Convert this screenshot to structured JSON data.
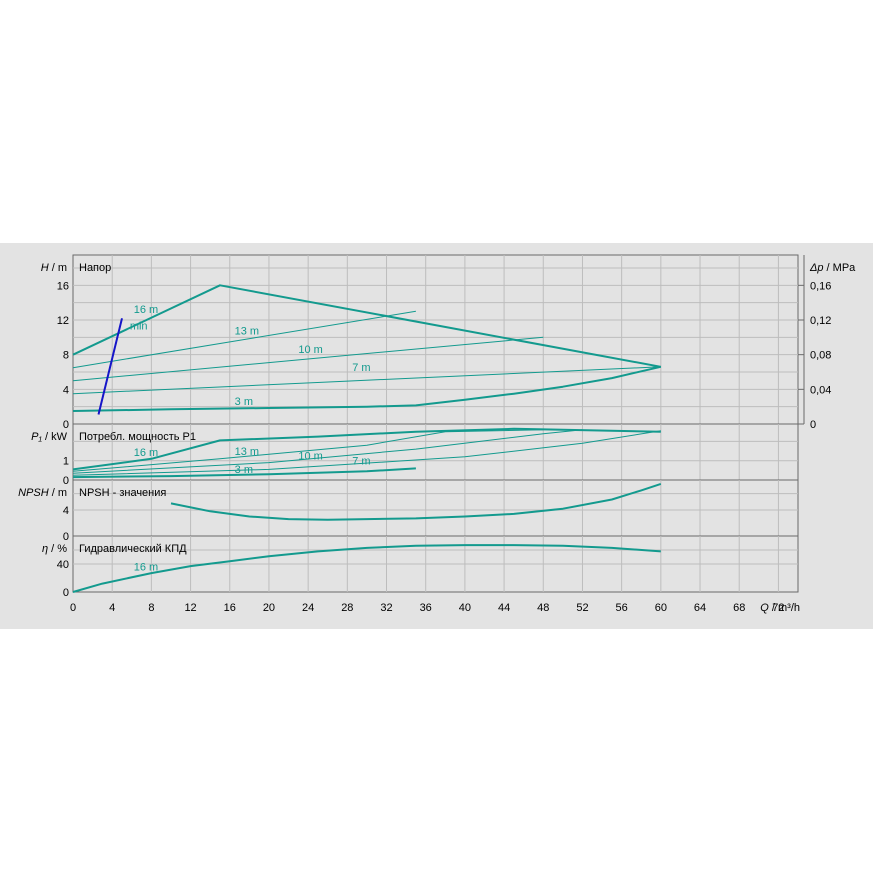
{
  "chart_data": {
    "type": "line",
    "colors": {
      "curve": "#139a8e",
      "limit": "#1515c8",
      "background": "#e3e3e3",
      "grid": "#bdbdbd"
    },
    "x_axis": {
      "label_var": "Q",
      "label_unit": "m³/h",
      "ticks": [
        "0",
        "4",
        "8",
        "12",
        "16",
        "20",
        "24",
        "28",
        "32",
        "36",
        "40",
        "44",
        "48",
        "52",
        "56",
        "60",
        "64",
        "68",
        "72"
      ],
      "range": [
        0,
        74
      ]
    },
    "panels": [
      {
        "id": "head",
        "title": "Напор",
        "label_var": "H",
        "label_unit": "m",
        "y_ticks": [
          "0",
          "4",
          "8",
          "12",
          "16"
        ],
        "y_range": [
          0,
          19.5
        ],
        "right_axis": {
          "label_var": "Δp",
          "label_unit": "MPa",
          "ticks": [
            "0",
            "0,04",
            "0,08",
            "0,12",
            "0,16"
          ]
        },
        "series": [
          {
            "name": "16 m",
            "width": 2,
            "points": [
              [
                0,
                8
              ],
              [
                15,
                16
              ],
              [
                60,
                6.6
              ]
            ]
          },
          {
            "name": "13 m",
            "width": 1,
            "points": [
              [
                0,
                6.5
              ],
              [
                35,
                13
              ]
            ]
          },
          {
            "name": "10 m",
            "width": 1,
            "points": [
              [
                0,
                5
              ],
              [
                48,
                10
              ]
            ]
          },
          {
            "name": "7 m",
            "width": 1,
            "points": [
              [
                0,
                3.5
              ],
              [
                60,
                6.6
              ]
            ]
          },
          {
            "name": "3 m",
            "width": 2,
            "points": [
              [
                0,
                1.5
              ],
              [
                10,
                1.7
              ],
              [
                20,
                1.85
              ],
              [
                30,
                2
              ],
              [
                35,
                2.15
              ],
              [
                40,
                2.8
              ],
              [
                45,
                3.5
              ],
              [
                50,
                4.3
              ],
              [
                55,
                5.3
              ],
              [
                60,
                6.6
              ]
            ]
          }
        ],
        "limit_line": {
          "name": "min",
          "points": [
            [
              2.6,
              1.1
            ],
            [
              5,
              12.2
            ]
          ]
        },
        "labels": [
          {
            "text": "16 m",
            "x": 6.2,
            "y": 12.8
          },
          {
            "text": "min",
            "x": 5.8,
            "y": 10.9
          },
          {
            "text": "13 m",
            "x": 16.5,
            "y": 10.3
          },
          {
            "text": "10 m",
            "x": 23,
            "y": 8.2
          },
          {
            "text": "7 m",
            "x": 28.5,
            "y": 6.1
          },
          {
            "text": "3 m",
            "x": 16.5,
            "y": 2.2
          }
        ]
      },
      {
        "id": "power",
        "title": "Потребл. мощность P1",
        "label_var": "P₁",
        "label_unit": "kW",
        "y_ticks": [
          "0",
          "1"
        ],
        "y_range": [
          0,
          2.9
        ],
        "series": [
          {
            "name": "16 m",
            "width": 2,
            "points": [
              [
                0,
                0.55
              ],
              [
                8,
                1.1
              ],
              [
                15,
                2.05
              ],
              [
                25,
                2.25
              ],
              [
                35,
                2.5
              ],
              [
                45,
                2.65
              ],
              [
                60,
                2.5
              ]
            ]
          },
          {
            "name": "13 m",
            "width": 1,
            "points": [
              [
                0,
                0.45
              ],
              [
                15,
                1.1
              ],
              [
                30,
                1.8
              ],
              [
                38,
                2.5
              ],
              [
                48,
                2.6
              ]
            ]
          },
          {
            "name": "10 m",
            "width": 1,
            "points": [
              [
                0,
                0.35
              ],
              [
                20,
                0.9
              ],
              [
                35,
                1.6
              ],
              [
                48,
                2.4
              ],
              [
                52,
                2.6
              ]
            ]
          },
          {
            "name": "7 m",
            "width": 1,
            "points": [
              [
                0,
                0.25
              ],
              [
                20,
                0.55
              ],
              [
                40,
                1.2
              ],
              [
                52,
                1.9
              ],
              [
                60,
                2.55
              ]
            ]
          },
          {
            "name": "3 m",
            "width": 2,
            "points": [
              [
                0,
                0.15
              ],
              [
                10,
                0.2
              ],
              [
                20,
                0.3
              ],
              [
                30,
                0.45
              ],
              [
                35,
                0.6
              ]
            ]
          }
        ],
        "labels": [
          {
            "text": "16 m",
            "x": 6.2,
            "y": 1.25
          },
          {
            "text": "13 m",
            "x": 16.5,
            "y": 1.3
          },
          {
            "text": "10 m",
            "x": 23,
            "y": 1.05
          },
          {
            "text": "7 m",
            "x": 28.5,
            "y": 0.8
          },
          {
            "text": "3 m",
            "x": 16.5,
            "y": 0.35
          }
        ]
      },
      {
        "id": "npsh",
        "title": "NPSH - значения",
        "label_var": "NPSH",
        "label_unit": "m",
        "y_ticks": [
          "0",
          "4"
        ],
        "y_range": [
          0,
          8.6
        ],
        "series": [
          {
            "name": "NPSH",
            "width": 2,
            "points": [
              [
                10,
                5
              ],
              [
                14,
                3.8
              ],
              [
                18,
                3
              ],
              [
                22,
                2.6
              ],
              [
                26,
                2.5
              ],
              [
                30,
                2.6
              ],
              [
                35,
                2.7
              ],
              [
                40,
                3
              ],
              [
                45,
                3.4
              ],
              [
                50,
                4.2
              ],
              [
                55,
                5.6
              ],
              [
                58,
                7
              ],
              [
                60,
                8
              ]
            ]
          }
        ],
        "labels": []
      },
      {
        "id": "efficiency",
        "title": "Гидравлический КПД",
        "label_var": "η",
        "label_unit": "%",
        "y_ticks": [
          "0",
          "40"
        ],
        "y_range": [
          0,
          80
        ],
        "series": [
          {
            "name": "16 m",
            "width": 2,
            "points": [
              [
                0,
                0
              ],
              [
                3,
                12
              ],
              [
                8,
                27
              ],
              [
                12,
                37
              ],
              [
                16,
                44
              ],
              [
                20,
                51
              ],
              [
                25,
                58
              ],
              [
                30,
                63
              ],
              [
                35,
                66
              ],
              [
                40,
                67
              ],
              [
                45,
                67
              ],
              [
                50,
                66
              ],
              [
                55,
                63
              ],
              [
                60,
                58
              ]
            ]
          }
        ],
        "labels": [
          {
            "text": "16 m",
            "x": 6.2,
            "y": 31
          }
        ]
      }
    ]
  }
}
